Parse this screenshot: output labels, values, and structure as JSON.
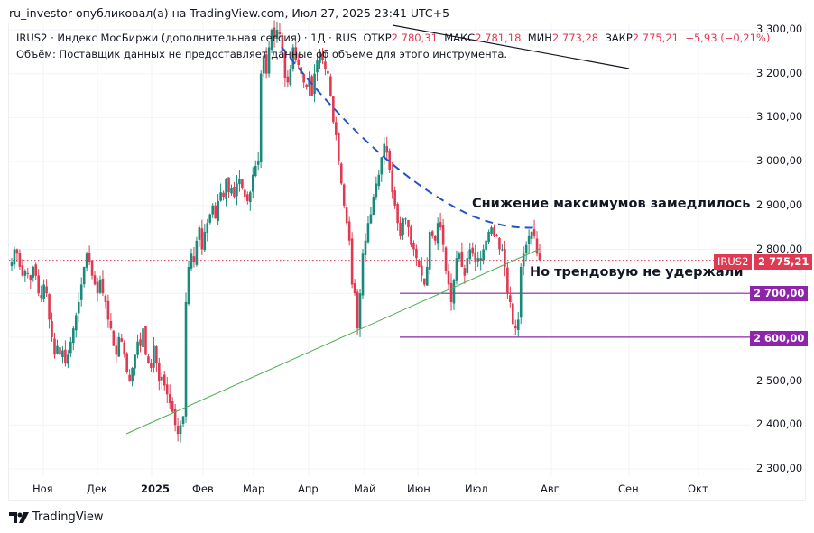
{
  "header": {
    "published": "ru_investor опубликовал(а) на TradingView.com, Июл 27, 2025 23:41 UTC+5"
  },
  "legend": {
    "symbol_line": "IRUS2 · Индекс МосБиржи (дополнительная сессия) · 1Д · RUS",
    "open_label": "ОТКР",
    "open": "2 780,31",
    "high_label": "МАКС",
    "high": "2 781,18",
    "low_label": "МИН",
    "low": "2 773,28",
    "close_label": "ЗАКР",
    "close": "2 775,21",
    "change": "−5,93 (−0,21%)",
    "volume_note": "Объём: Поставщик данных не предоставляет данные об объеме для этого инструмента."
  },
  "annotations": {
    "highs_slowing": "Снижение максимумов замедлилось",
    "trend_broken": "Но трендовую не удержали"
  },
  "price_axis": {
    "ticks": [
      "3 300,00",
      "3 200,00",
      "3 100,00",
      "3 000,00",
      "2 900,00",
      "2 800,00",
      "2 700,00",
      "2 600,00",
      "2 500,00",
      "2 400,00",
      "2 300,00"
    ],
    "current_symbol": "IRUS2",
    "current_price": "2 775,21",
    "level_2700": "2 700,00",
    "level_2600": "2 600,00"
  },
  "time_axis": {
    "ticks": [
      "Ноя",
      "Дек",
      "2025",
      "Фев",
      "Мар",
      "Апр",
      "Май",
      "Июн",
      "Июл",
      "Авг",
      "Сен",
      "Окт"
    ]
  },
  "footer": {
    "brand": "TradingView"
  },
  "colors": {
    "up": "#1b8a7a",
    "down": "#e03a52",
    "level": "#8e24aa",
    "trend": "#4caf50",
    "resistance": "#2453c8"
  },
  "chart_data": {
    "type": "candlestick",
    "title": "IRUS2 · Индекс МосБиржи (дополнительная сессия) · 1Д",
    "xlabel": "",
    "ylabel": "",
    "ylim": [
      2280,
      3320
    ],
    "x_ticks": [
      "Ноя",
      "Дек",
      "2025",
      "Фев",
      "Мар",
      "Апр",
      "Май",
      "Июн",
      "Июл",
      "Авг",
      "Сен",
      "Окт"
    ],
    "last_close": 2775.21,
    "horizontal_levels": [
      2700,
      2600
    ],
    "closes": [
      2770,
      2800,
      2790,
      2760,
      2740,
      2750,
      2745,
      2730,
      2760,
      2740,
      2700,
      2690,
      2720,
      2700,
      2640,
      2600,
      2560,
      2580,
      2560,
      2570,
      2540,
      2560,
      2590,
      2620,
      2650,
      2680,
      2720,
      2760,
      2790,
      2770,
      2740,
      2720,
      2700,
      2730,
      2700,
      2680,
      2640,
      2620,
      2580,
      2560,
      2600,
      2590,
      2560,
      2520,
      2500,
      2530,
      2560,
      2590,
      2580,
      2620,
      2560,
      2540,
      2530,
      2580,
      2540,
      2500,
      2510,
      2490,
      2470,
      2450,
      2430,
      2400,
      2380,
      2400,
      2420,
      2680,
      2760,
      2790,
      2770,
      2820,
      2850,
      2800,
      2840,
      2860,
      2880,
      2900,
      2870,
      2910,
      2930,
      2920,
      2960,
      2930,
      2940,
      2920,
      2950,
      2960,
      2940,
      2920,
      2910,
      2930,
      2970,
      2990,
      3000,
      3200,
      3240,
      3200,
      3260,
      3300,
      3280,
      3300,
      3290,
      3250,
      3190,
      3180,
      3210,
      3260,
      3230,
      3220,
      3200,
      3180,
      3170,
      3190,
      3150,
      3200,
      3230,
      3250,
      3230,
      3210,
      3200,
      3150,
      3090,
      3060,
      3000,
      2950,
      2900,
      2860,
      2820,
      2720,
      2700,
      2620,
      2700,
      2790,
      2820,
      2860,
      2880,
      2920,
      2950,
      2970,
      3010,
      3040,
      3020,
      2980,
      2930,
      2900,
      2860,
      2830,
      2870,
      2870,
      2850,
      2810,
      2800,
      2780,
      2760,
      2740,
      2720,
      2760,
      2840,
      2830,
      2820,
      2860,
      2850,
      2810,
      2750,
      2720,
      2680,
      2730,
      2780,
      2790,
      2760,
      2740,
      2780,
      2800,
      2790,
      2770,
      2780,
      2780,
      2800,
      2820,
      2840,
      2850,
      2830,
      2830,
      2800,
      2800,
      2760,
      2700,
      2680,
      2630,
      2620,
      2640,
      2760,
      2790,
      2810,
      2830,
      2840,
      2830,
      2790,
      2776
    ]
  }
}
